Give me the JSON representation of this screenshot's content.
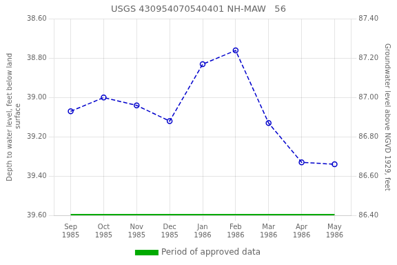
{
  "chart_data": {
    "type": "line",
    "title": "USGS 430954070540401 NH-MAW   56",
    "categories": [
      "Sep\n1985",
      "Oct\n1985",
      "Nov\n1985",
      "Dec\n1985",
      "Jan\n1986",
      "Feb\n1986",
      "Mar\n1986",
      "Apr\n1986",
      "May\n1986"
    ],
    "series": [
      {
        "values": [
          39.07,
          39.0,
          39.04,
          39.12,
          38.83,
          38.76,
          39.13,
          39.33,
          39.34
        ],
        "color": "#0000cc",
        "marker": "circle",
        "line_style": "dashed"
      },
      {
        "name": "Period of approved data",
        "values": [
          39.6,
          39.6,
          39.6,
          39.6,
          39.6,
          39.6,
          39.6,
          39.6,
          39.6
        ],
        "color": "#00aa00",
        "line_style": "solid"
      }
    ],
    "ylabel": "Depth to water level, feet below land\n surface",
    "y2label": "Groundwater level above NGVD 1929, feet",
    "ylim": [
      39.6,
      38.6
    ],
    "yticks": [
      {
        "value": 38.6,
        "label": "38.60"
      },
      {
        "value": 38.8,
        "label": "38.80"
      },
      {
        "value": 39.0,
        "label": "39.00"
      },
      {
        "value": 39.2,
        "label": "39.20"
      },
      {
        "value": 39.4,
        "label": "39.40"
      },
      {
        "value": 39.6,
        "label": "39.60"
      }
    ],
    "y2lim": [
      86.4,
      87.4
    ],
    "y2ticks": [
      {
        "value": 86.4,
        "label": "86.40"
      },
      {
        "value": 86.6,
        "label": "86.60"
      },
      {
        "value": 86.8,
        "label": "86.80"
      },
      {
        "value": 87.0,
        "label": "87.00"
      },
      {
        "value": 87.2,
        "label": "87.20"
      },
      {
        "value": 87.4,
        "label": "87.40"
      }
    ],
    "grid": true,
    "legend": "bottom"
  }
}
